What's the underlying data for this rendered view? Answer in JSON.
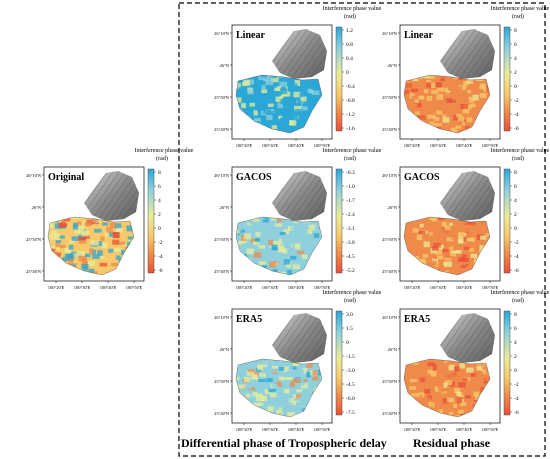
{
  "colorbar_title": "Interference phase value",
  "colorbar_unit": "(rad)",
  "lat_labels": [
    "26°10'N",
    "26°N",
    "25°50'N",
    "25°40'N"
  ],
  "lon_labels": [
    "100°20'E",
    "100°30'E",
    "100°40'E",
    "100°50'E"
  ],
  "section_titles": {
    "differential": "Differential phase of Tropospheric delay",
    "residual": "Residual phase"
  },
  "panels": [
    {
      "id": "original",
      "label": "Original",
      "ticks": [
        "8",
        "6",
        "4",
        "2",
        "0",
        "-2",
        "-4",
        "-6"
      ]
    },
    {
      "id": "linear-diff",
      "label": "Linear",
      "ticks": [
        "1.2",
        "0.8",
        "0.4",
        "0",
        "-0.4",
        "-0.8",
        "-1.2",
        "-1.6"
      ]
    },
    {
      "id": "linear-res",
      "label": "Linear",
      "ticks": [
        "8",
        "6",
        "4",
        "2",
        "0",
        "-2",
        "-4",
        "-6"
      ]
    },
    {
      "id": "gacos-diff",
      "label": "GACOS",
      "ticks": [
        "-0.3",
        "-1.0",
        "-1.7",
        "-2.4",
        "-3.1",
        "-3.8",
        "-4.5",
        "-5.2"
      ]
    },
    {
      "id": "gacos-res",
      "label": "GACOS",
      "ticks": [
        "8",
        "6",
        "4",
        "2",
        "0",
        "-2",
        "-4",
        "-6"
      ]
    },
    {
      "id": "era5-diff",
      "label": "ERA5",
      "ticks": [
        "3.0",
        "1.5",
        "0",
        "-1.5",
        "-3.0",
        "-4.5",
        "-6.0",
        "-7.5"
      ]
    },
    {
      "id": "era5-res",
      "label": "ERA5",
      "ticks": [
        "8",
        "6",
        "4",
        "2",
        "0",
        "-2",
        "-4",
        "-6"
      ]
    }
  ],
  "colors": {
    "colormap": [
      "#2aa7d6",
      "#8fd0dc",
      "#e8ec9a",
      "#f7c96a",
      "#ef8a4a",
      "#e8503a"
    ],
    "hillshade": "#9a9a9a",
    "frame": "#000000"
  }
}
